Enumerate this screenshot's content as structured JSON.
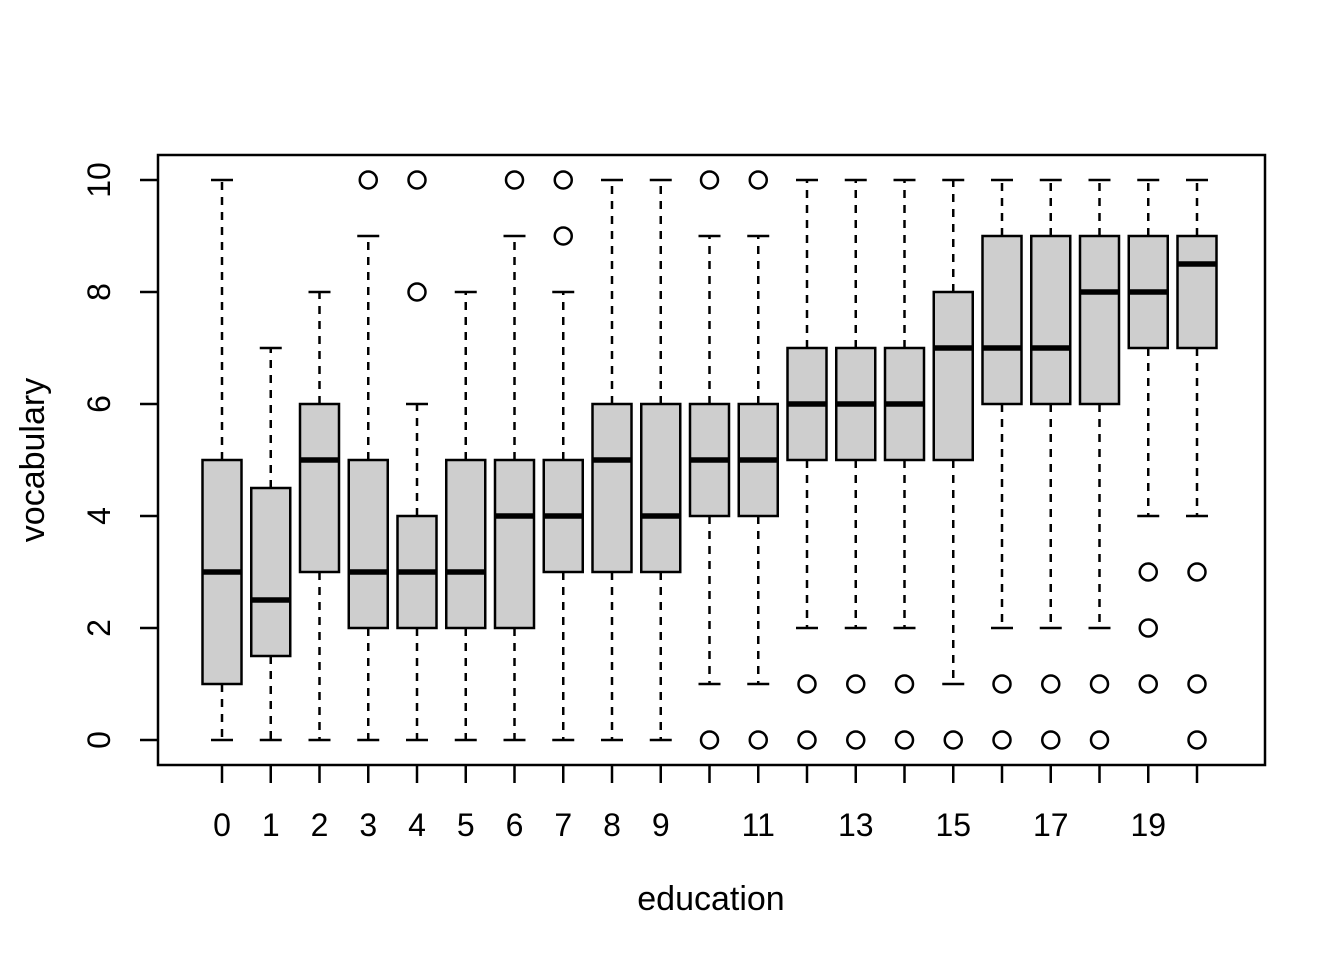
{
  "chart_data": {
    "type": "boxplot",
    "title": "",
    "xlabel": "education",
    "ylabel": "vocabulary",
    "ylim": [
      0,
      10
    ],
    "y_ticks": [
      0,
      2,
      4,
      6,
      8,
      10
    ],
    "x_categories": [
      0,
      1,
      2,
      3,
      4,
      5,
      6,
      7,
      8,
      9,
      10,
      11,
      12,
      13,
      14,
      15,
      16,
      17,
      18,
      19,
      20
    ],
    "x_axis_labels_shown": [
      0,
      1,
      2,
      3,
      4,
      5,
      6,
      7,
      8,
      9,
      11,
      13,
      15,
      17,
      19
    ],
    "grid": "off",
    "legend": "none",
    "colors": {
      "box_fill": "#cecece",
      "line": "#000000",
      "background": "#ffffff"
    },
    "boxes": [
      {
        "education": 0,
        "whisker_low": 0,
        "q1": 1,
        "median": 3,
        "q3": 5,
        "whisker_high": 10,
        "outliers": []
      },
      {
        "education": 1,
        "whisker_low": 0,
        "q1": 1.5,
        "median": 2.5,
        "q3": 4.5,
        "whisker_high": 7,
        "outliers": []
      },
      {
        "education": 2,
        "whisker_low": 0,
        "q1": 3,
        "median": 5,
        "q3": 6,
        "whisker_high": 8,
        "outliers": []
      },
      {
        "education": 3,
        "whisker_low": 0,
        "q1": 2,
        "median": 3,
        "q3": 5,
        "whisker_high": 9,
        "outliers": [
          10
        ]
      },
      {
        "education": 4,
        "whisker_low": 0,
        "q1": 2,
        "median": 3,
        "q3": 4,
        "whisker_high": 6,
        "outliers": [
          8,
          10
        ]
      },
      {
        "education": 5,
        "whisker_low": 0,
        "q1": 2,
        "median": 3,
        "q3": 5,
        "whisker_high": 8,
        "outliers": []
      },
      {
        "education": 6,
        "whisker_low": 0,
        "q1": 2,
        "median": 4,
        "q3": 5,
        "whisker_high": 9,
        "outliers": [
          10
        ]
      },
      {
        "education": 7,
        "whisker_low": 0,
        "q1": 3,
        "median": 4,
        "q3": 5,
        "whisker_high": 8,
        "outliers": [
          9,
          10
        ]
      },
      {
        "education": 8,
        "whisker_low": 0,
        "q1": 3,
        "median": 5,
        "q3": 6,
        "whisker_high": 10,
        "outliers": []
      },
      {
        "education": 9,
        "whisker_low": 0,
        "q1": 3,
        "median": 4,
        "q3": 6,
        "whisker_high": 10,
        "outliers": []
      },
      {
        "education": 10,
        "whisker_low": 1,
        "q1": 4,
        "median": 5,
        "q3": 6,
        "whisker_high": 9,
        "outliers": [
          10,
          0
        ]
      },
      {
        "education": 11,
        "whisker_low": 1,
        "q1": 4,
        "median": 5,
        "q3": 6,
        "whisker_high": 9,
        "outliers": [
          10,
          0
        ]
      },
      {
        "education": 12,
        "whisker_low": 2,
        "q1": 5,
        "median": 6,
        "q3": 7,
        "whisker_high": 10,
        "outliers": [
          1,
          0
        ]
      },
      {
        "education": 13,
        "whisker_low": 2,
        "q1": 5,
        "median": 6,
        "q3": 7,
        "whisker_high": 10,
        "outliers": [
          1,
          0
        ]
      },
      {
        "education": 14,
        "whisker_low": 2,
        "q1": 5,
        "median": 6,
        "q3": 7,
        "whisker_high": 10,
        "outliers": [
          1,
          0
        ]
      },
      {
        "education": 15,
        "whisker_low": 1,
        "q1": 5,
        "median": 7,
        "q3": 8,
        "whisker_high": 10,
        "outliers": [
          0
        ]
      },
      {
        "education": 16,
        "whisker_low": 2,
        "q1": 6,
        "median": 7,
        "q3": 9,
        "whisker_high": 10,
        "outliers": [
          1,
          0
        ]
      },
      {
        "education": 17,
        "whisker_low": 2,
        "q1": 6,
        "median": 7,
        "q3": 9,
        "whisker_high": 10,
        "outliers": [
          1,
          0
        ]
      },
      {
        "education": 18,
        "whisker_low": 2,
        "q1": 6,
        "median": 8,
        "q3": 9,
        "whisker_high": 10,
        "outliers": [
          1,
          0
        ]
      },
      {
        "education": 19,
        "whisker_low": 4,
        "q1": 7,
        "median": 8,
        "q3": 9,
        "whisker_high": 10,
        "outliers": [
          3,
          2,
          1
        ]
      },
      {
        "education": 20,
        "whisker_low": 4,
        "q1": 7,
        "median": 8.5,
        "q3": 9,
        "whisker_high": 10,
        "outliers": [
          3,
          1,
          0
        ]
      }
    ]
  }
}
